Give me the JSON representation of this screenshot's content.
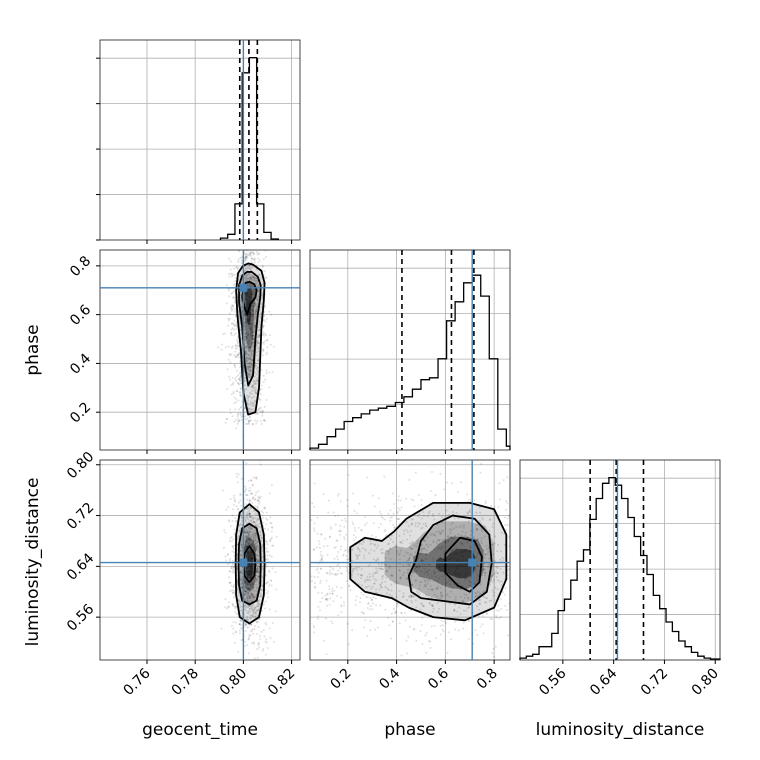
{
  "chart_data": {
    "type": "corner",
    "parameters": [
      "geocent_time",
      "phase",
      "luminosity_distance"
    ],
    "labels": {
      "geocent_time": "geocent_time",
      "phase": "phase",
      "luminosity_distance": "luminosity_distance"
    },
    "ranges": {
      "geocent_time": [
        0.7405,
        0.8235
      ],
      "phase": [
        0.045,
        0.865
      ],
      "luminosity_distance": [
        0.4925,
        0.8075
      ]
    },
    "ticks": {
      "geocent_time": [
        {
          "v": 0.76,
          "t": "0.76"
        },
        {
          "v": 0.78,
          "t": "0.78"
        },
        {
          "v": 0.8,
          "t": "0.80"
        },
        {
          "v": 0.82,
          "t": "0.82"
        }
      ],
      "phase": [
        {
          "v": 0.2,
          "t": "0.2"
        },
        {
          "v": 0.4,
          "t": "0.4"
        },
        {
          "v": 0.6,
          "t": "0.6"
        },
        {
          "v": 0.8,
          "t": "0.8"
        }
      ],
      "luminosity_distance": [
        {
          "v": 0.56,
          "t": "0.56"
        },
        {
          "v": 0.64,
          "t": "0.64"
        },
        {
          "v": 0.72,
          "t": "0.72"
        },
        {
          "v": 0.8,
          "t": "0.80"
        }
      ]
    },
    "truths": {
      "geocent_time": 0.8,
      "phase": 0.71,
      "luminosity_distance": 0.646
    },
    "truth_color": "#4682b4",
    "quantiles": {
      "geocent_time": [
        0.7985,
        0.8023,
        0.8058
      ],
      "phase": [
        0.422,
        0.625,
        0.717
      ],
      "luminosity_distance": [
        0.603,
        0.644,
        0.687
      ]
    },
    "marginals": {
      "geocent_time": {
        "edges": [
          0.7905,
          0.7935,
          0.7965,
          0.7995,
          0.8025,
          0.8055,
          0.8085,
          0.8115,
          0.8145
        ],
        "values": [
          0.01,
          0.03,
          0.19,
          0.88,
          0.96,
          0.19,
          0.04,
          0.005
        ]
      },
      "phase": {
        "edges": [
          0.045,
          0.08,
          0.115,
          0.15,
          0.185,
          0.22,
          0.255,
          0.29,
          0.325,
          0.36,
          0.395,
          0.43,
          0.465,
          0.5,
          0.535,
          0.57,
          0.605,
          0.64,
          0.675,
          0.71,
          0.745,
          0.78,
          0.815,
          0.85,
          0.865
        ],
        "values": [
          0.01,
          0.03,
          0.07,
          0.11,
          0.15,
          0.17,
          0.19,
          0.21,
          0.22,
          0.23,
          0.25,
          0.28,
          0.32,
          0.37,
          0.38,
          0.48,
          0.68,
          0.78,
          0.88,
          0.92,
          0.81,
          0.48,
          0.11,
          0.02
        ]
      },
      "luminosity_distance": {
        "edges": [
          0.4925,
          0.5025,
          0.5125,
          0.5225,
          0.5325,
          0.5425,
          0.5525,
          0.5625,
          0.5725,
          0.5825,
          0.5925,
          0.6025,
          0.6125,
          0.6225,
          0.6325,
          0.6425,
          0.6525,
          0.6625,
          0.6725,
          0.6825,
          0.6925,
          0.7025,
          0.7125,
          0.7225,
          0.7325,
          0.7425,
          0.7525,
          0.7625,
          0.7725,
          0.7825,
          0.7925,
          0.8075
        ],
        "values": [
          0.01,
          0.02,
          0.03,
          0.07,
          0.07,
          0.14,
          0.26,
          0.32,
          0.42,
          0.52,
          0.58,
          0.74,
          0.85,
          0.93,
          0.96,
          0.92,
          0.85,
          0.75,
          0.65,
          0.55,
          0.45,
          0.34,
          0.27,
          0.2,
          0.15,
          0.1,
          0.07,
          0.04,
          0.02,
          0.01,
          0.005
        ]
      }
    },
    "pairs": [
      {
        "x": "geocent_time",
        "y": "phase",
        "center": [
          0.802,
          0.68
        ],
        "contours": [
          [
            [
              0.8025,
              0.735
            ],
            [
              0.8045,
              0.725
            ],
            [
              0.8055,
              0.7
            ],
            [
              0.805,
              0.67
            ],
            [
              0.803,
              0.645
            ],
            [
              0.8015,
              0.6
            ],
            [
              0.8005,
              0.63
            ],
            [
              0.7995,
              0.67
            ],
            [
              0.8,
              0.71
            ],
            [
              0.801,
              0.73
            ]
          ],
          [
            [
              0.8035,
              0.775
            ],
            [
              0.806,
              0.755
            ],
            [
              0.8072,
              0.72
            ],
            [
              0.807,
              0.67
            ],
            [
              0.806,
              0.6
            ],
            [
              0.805,
              0.5
            ],
            [
              0.804,
              0.35
            ],
            [
              0.802,
              0.31
            ],
            [
              0.8005,
              0.4
            ],
            [
              0.7995,
              0.55
            ],
            [
              0.7982,
              0.65
            ],
            [
              0.7982,
              0.72
            ],
            [
              0.7995,
              0.76
            ],
            [
              0.8015,
              0.775
            ]
          ],
          [
            [
              0.804,
              0.805
            ],
            [
              0.8075,
              0.78
            ],
            [
              0.8088,
              0.73
            ],
            [
              0.8085,
              0.66
            ],
            [
              0.8075,
              0.55
            ],
            [
              0.8065,
              0.3
            ],
            [
              0.805,
              0.2
            ],
            [
              0.802,
              0.19
            ],
            [
              0.8,
              0.28
            ],
            [
              0.799,
              0.45
            ],
            [
              0.7975,
              0.6
            ],
            [
              0.797,
              0.7
            ],
            [
              0.7978,
              0.77
            ],
            [
              0.7998,
              0.8
            ],
            [
              0.802,
              0.81
            ]
          ]
        ]
      },
      {
        "x": "geocent_time",
        "y": "luminosity_distance",
        "center": [
          0.8025,
          0.643
        ],
        "contours": [
          [
            [
              0.8025,
              0.672
            ],
            [
              0.8045,
              0.66
            ],
            [
              0.805,
              0.643
            ],
            [
              0.8045,
              0.625
            ],
            [
              0.8025,
              0.615
            ],
            [
              0.8005,
              0.625
            ],
            [
              0.8,
              0.643
            ],
            [
              0.8005,
              0.66
            ]
          ],
          [
            [
              0.8025,
              0.707
            ],
            [
              0.8055,
              0.7
            ],
            [
              0.807,
              0.675
            ],
            [
              0.8072,
              0.643
            ],
            [
              0.807,
              0.61
            ],
            [
              0.8055,
              0.586
            ],
            [
              0.8025,
              0.58
            ],
            [
              0.7995,
              0.586
            ],
            [
              0.7982,
              0.61
            ],
            [
              0.798,
              0.643
            ],
            [
              0.7982,
              0.675
            ],
            [
              0.7995,
              0.7
            ]
          ],
          [
            [
              0.8025,
              0.738
            ],
            [
              0.8065,
              0.725
            ],
            [
              0.8085,
              0.69
            ],
            [
              0.8088,
              0.643
            ],
            [
              0.8085,
              0.595
            ],
            [
              0.8065,
              0.56
            ],
            [
              0.8025,
              0.55
            ],
            [
              0.7985,
              0.56
            ],
            [
              0.797,
              0.595
            ],
            [
              0.7968,
              0.643
            ],
            [
              0.797,
              0.69
            ],
            [
              0.7985,
              0.725
            ]
          ]
        ]
      },
      {
        "x": "phase",
        "y": "luminosity_distance",
        "center": [
          0.68,
          0.643
        ],
        "contours": [
          [
            [
              0.66,
              0.685
            ],
            [
              0.72,
              0.68
            ],
            [
              0.75,
              0.655
            ],
            [
              0.74,
              0.615
            ],
            [
              0.7,
              0.6
            ],
            [
              0.65,
              0.61
            ],
            [
              0.6,
              0.63
            ],
            [
              0.6,
              0.66
            ]
          ],
          [
            [
              0.55,
              0.705
            ],
            [
              0.63,
              0.72
            ],
            [
              0.72,
              0.715
            ],
            [
              0.78,
              0.69
            ],
            [
              0.79,
              0.645
            ],
            [
              0.77,
              0.6
            ],
            [
              0.7,
              0.58
            ],
            [
              0.6,
              0.585
            ],
            [
              0.5,
              0.59
            ],
            [
              0.46,
              0.6
            ],
            [
              0.45,
              0.625
            ],
            [
              0.48,
              0.65
            ],
            [
              0.5,
              0.68
            ]
          ],
          [
            [
              0.44,
              0.715
            ],
            [
              0.55,
              0.74
            ],
            [
              0.7,
              0.74
            ],
            [
              0.8,
              0.73
            ],
            [
              0.85,
              0.69
            ],
            [
              0.85,
              0.62
            ],
            [
              0.8,
              0.575
            ],
            [
              0.68,
              0.555
            ],
            [
              0.55,
              0.56
            ],
            [
              0.45,
              0.575
            ],
            [
              0.38,
              0.59
            ],
            [
              0.27,
              0.6
            ],
            [
              0.21,
              0.62
            ],
            [
              0.21,
              0.67
            ],
            [
              0.27,
              0.685
            ],
            [
              0.34,
              0.68
            ],
            [
              0.39,
              0.695
            ]
          ]
        ]
      }
    ]
  }
}
